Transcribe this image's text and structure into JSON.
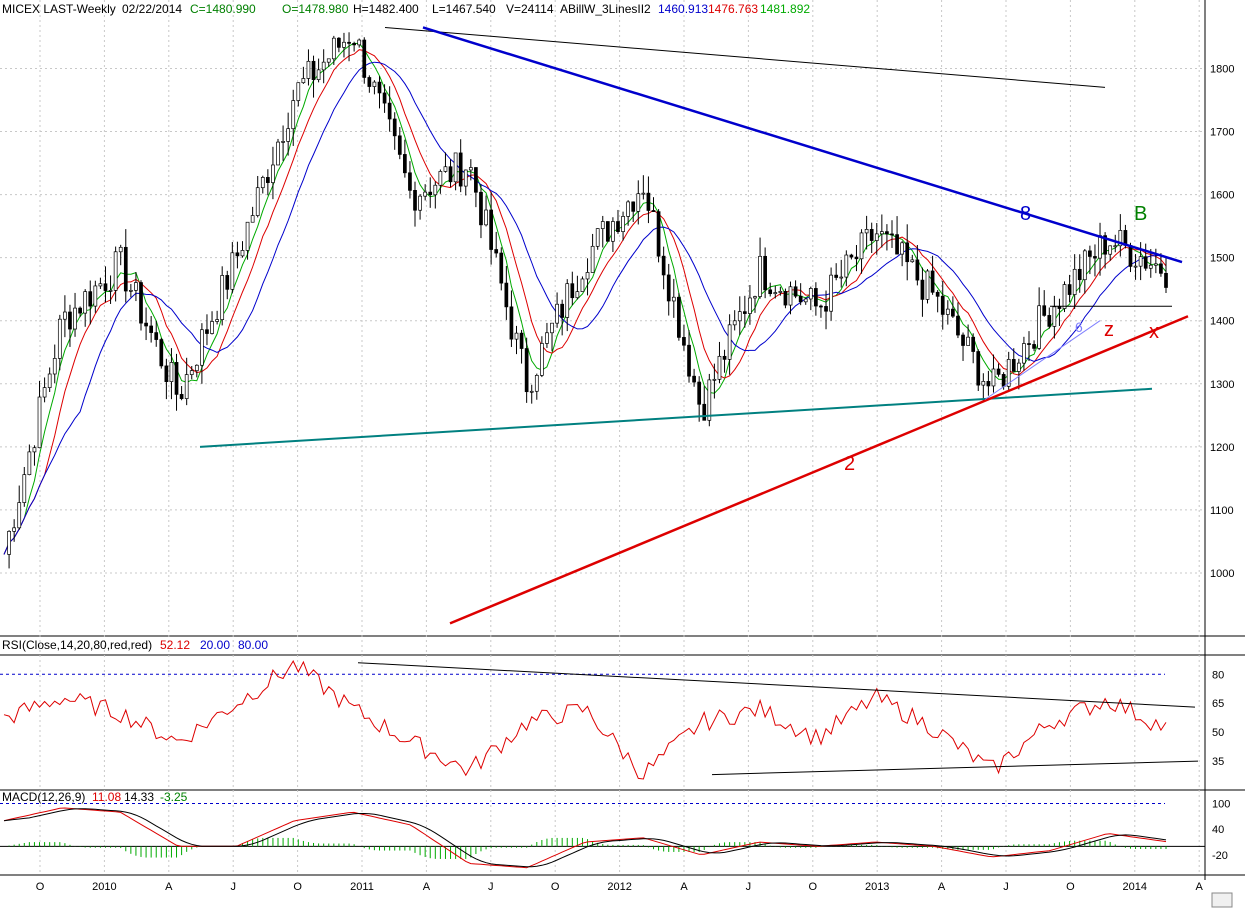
{
  "header": {
    "symbol": "MICEX LAST-Weekly",
    "date": "02/22/2014",
    "close": "C=1480.990",
    "open": "O=1478.980",
    "high": "H=1482.400",
    "low": "L=1467.540",
    "volume": "V=24114",
    "study": "ABillW_3LinesII2",
    "ma_blue": "1460.913",
    "ma_red": "1476.763",
    "ma_green": "1481.892"
  },
  "rsi_panel": {
    "label": "RSI(Close,14,20,80,red,red)",
    "value": "52.12",
    "low_level": "20.00",
    "high_level": "80.00"
  },
  "macd_panel": {
    "label": "MACD(12,26,9)",
    "macd": "11.08",
    "signal": "14.33",
    "hist": "-3.25"
  },
  "annotations": {
    "eight": "8",
    "b": "B",
    "z": "z",
    "x": "x",
    "two": "2",
    "six": "6"
  },
  "colors": {
    "blue": "#0000cc",
    "red": "#dd0000",
    "green": "#00aa00",
    "teal": "#008080",
    "grid": "#c8c8c8"
  },
  "chart_data": [
    {
      "type": "candlestick",
      "title": "",
      "yticks": [
        1000,
        1100,
        1200,
        1300,
        1400,
        1500,
        1600,
        1700,
        1800
      ],
      "ylim": [
        900,
        1880
      ],
      "xticks": [
        "O",
        "2010",
        "A",
        "J",
        "O",
        "2011",
        "A",
        "J",
        "O",
        "2012",
        "A",
        "J",
        "O",
        "2013",
        "A",
        "J",
        "O",
        "2014",
        "A"
      ],
      "close_key_points": [
        {
          "date": "2009-10",
          "value": 1030
        },
        {
          "date": "2010-01",
          "value": 1400
        },
        {
          "date": "2010-04",
          "value": 1490
        },
        {
          "date": "2010-06",
          "value": 1280
        },
        {
          "date": "2010-10",
          "value": 1500
        },
        {
          "date": "2011-01",
          "value": 1760
        },
        {
          "date": "2011-04",
          "value": 1860
        },
        {
          "date": "2011-06",
          "value": 1600
        },
        {
          "date": "2011-08",
          "value": 1650
        },
        {
          "date": "2011-10",
          "value": 1300
        },
        {
          "date": "2012-02",
          "value": 1500
        },
        {
          "date": "2012-03",
          "value": 1620
        },
        {
          "date": "2012-06",
          "value": 1260
        },
        {
          "date": "2012-09",
          "value": 1480
        },
        {
          "date": "2012-12",
          "value": 1420
        },
        {
          "date": "2013-01",
          "value": 1540
        },
        {
          "date": "2013-04",
          "value": 1440
        },
        {
          "date": "2013-06",
          "value": 1290
        },
        {
          "date": "2013-09",
          "value": 1420
        },
        {
          "date": "2013-10",
          "value": 1530
        },
        {
          "date": "2014-02",
          "value": 1481
        }
      ]
    },
    {
      "type": "line",
      "title": "RSI(Close,14,20,80,red,red)",
      "yticks": [
        35,
        50,
        65,
        80
      ],
      "values_key_points": [
        57,
        68,
        60,
        45,
        65,
        85,
        62,
        45,
        30,
        55,
        62,
        28,
        55,
        62,
        47,
        68,
        52,
        30,
        55,
        67,
        52
      ]
    },
    {
      "type": "line",
      "title": "MACD(12,26,9)",
      "yticks": [
        100,
        40,
        -20
      ],
      "values_key_points": [
        60,
        90,
        80,
        0,
        0,
        60,
        80,
        50,
        -40,
        -50,
        10,
        20,
        -20,
        10,
        0,
        10,
        0,
        -25,
        -10,
        30,
        11
      ]
    }
  ]
}
